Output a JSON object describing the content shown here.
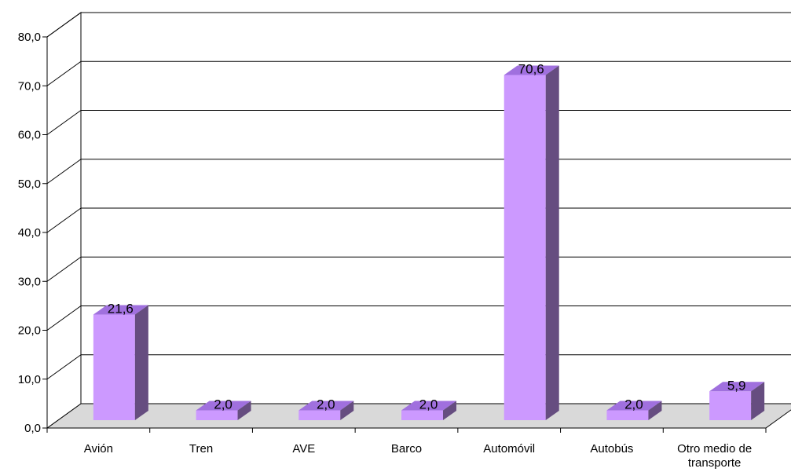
{
  "chart_data": {
    "type": "bar",
    "three_d": true,
    "categories": [
      "Avión",
      "Tren",
      "AVE",
      "Barco",
      "Automóvil",
      "Autobús",
      [
        "Otro medio de",
        "transporte"
      ]
    ],
    "values": [
      21.6,
      2.0,
      2.0,
      2.0,
      70.6,
      2.0,
      5.9
    ],
    "data_labels": [
      "21,6",
      "2,0",
      "2,0",
      "2,0",
      "70,6",
      "2,0",
      "5,9"
    ],
    "ylim": [
      0,
      80
    ],
    "yticks": [
      0,
      10,
      20,
      30,
      40,
      50,
      60,
      70,
      80
    ],
    "ytick_labels": [
      "0,0",
      "10,0",
      "20,0",
      "30,0",
      "40,0",
      "50,0",
      "60,0",
      "70,0",
      "80,0"
    ],
    "grid": true,
    "legend": "none",
    "colors": {
      "bar_front": "#CC99FF",
      "bar_top": "#A070DE",
      "bar_side": "#664D80",
      "floor": "#D9D9D9",
      "gridline": "#000000"
    }
  }
}
